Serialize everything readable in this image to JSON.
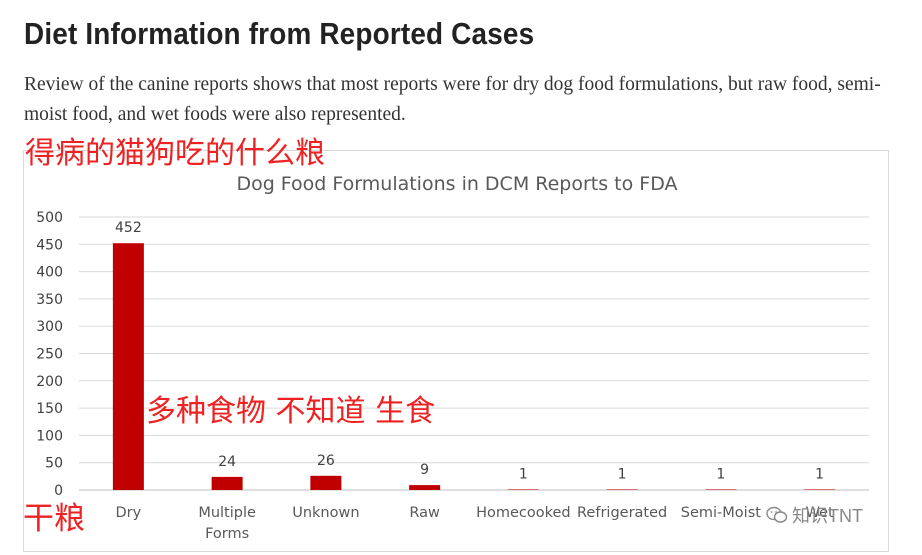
{
  "article": {
    "heading": "Diet Information from Reported Cases",
    "intro": "Review of the canine reports shows that most reports were for dry dog food formulations, but raw food, semi-moist food, and wet foods were also represented."
  },
  "annotations": {
    "top": "得病的猫狗吃的什么粮",
    "middle": "多种食物 不知道  生食",
    "bottom": "干粮"
  },
  "watermark": {
    "text": "知识TNT",
    "icon": "wechat-icon"
  },
  "chart_data": {
    "type": "bar",
    "title": "Dog Food Formulations in DCM Reports to FDA",
    "categories": [
      "Dry",
      "Multiple Forms",
      "Unknown",
      "Raw",
      "Homecooked",
      "Refrigerated",
      "Semi-Moist",
      "Wet"
    ],
    "category_lines": [
      [
        "Dry"
      ],
      [
        "Multiple",
        "Forms"
      ],
      [
        "Unknown"
      ],
      [
        "Raw"
      ],
      [
        "Homecooked"
      ],
      [
        "Refrigerated"
      ],
      [
        "Semi-Moist"
      ],
      [
        "Wet"
      ]
    ],
    "values": [
      452,
      24,
      26,
      9,
      1,
      1,
      1,
      1
    ],
    "ylim": [
      0,
      500
    ],
    "yticks": [
      0,
      50,
      100,
      150,
      200,
      250,
      300,
      350,
      400,
      450,
      500
    ],
    "grid": true,
    "bar_color": "#c00000",
    "xlabel": "",
    "ylabel": ""
  }
}
